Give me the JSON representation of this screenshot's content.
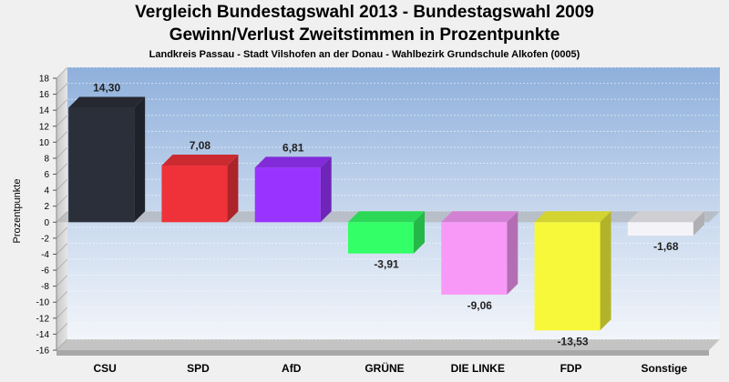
{
  "chart_data": {
    "type": "bar",
    "title": "Vergleich Bundestagswahl 2013 - Bundestagswahl 2009",
    "subtitle": "Gewinn/Verlust Zweitstimmen in Prozentpunkte",
    "subsubtitle": "Landkreis Passau - Stadt Vilshofen an der Donau - Wahlbezirk Grundschule Alkofen (0005)",
    "xlabel": "",
    "ylabel": "Prozentpunkte",
    "ylim": [
      -16,
      18
    ],
    "yticks": [
      "18",
      "16",
      "14",
      "12",
      "10",
      "8",
      "6",
      "4",
      "2",
      "0",
      "-2",
      "-4",
      "-6",
      "-8",
      "-10",
      "-12",
      "-14",
      "-16"
    ],
    "categories": [
      "CSU",
      "SPD",
      "AfD",
      "GRÜNE",
      "DIE LINKE",
      "FDP",
      "Sonstige"
    ],
    "values": [
      14.3,
      7.08,
      6.81,
      -3.91,
      -9.06,
      -13.53,
      -1.68
    ],
    "value_labels": [
      "14,30",
      "7,08",
      "6,81",
      "-3,91",
      "-9,06",
      "-13,53",
      "-1,68"
    ],
    "colors": [
      "#2b2f3a",
      "#ef3239",
      "#9933ff",
      "#33ff66",
      "#f899f8",
      "#f8f83a",
      "#f4f4f8"
    ],
    "grid": true
  }
}
